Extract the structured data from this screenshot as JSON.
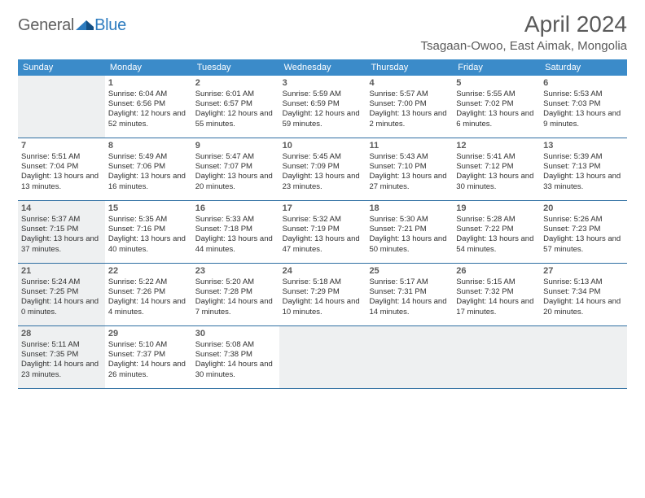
{
  "brand": {
    "word1": "General",
    "word2": "Blue"
  },
  "title": "April 2024",
  "location": "Tsagaan-Owoo, East Aimak, Mongolia",
  "colors": {
    "header_bar": "#3b8bc9",
    "week_border": "#2f6fa2",
    "shaded_bg": "#eef0f1",
    "text": "#303030",
    "title_text": "#5a5a5a",
    "brand_gray": "#606060",
    "brand_blue": "#2c7bbf"
  },
  "dow": [
    "Sunday",
    "Monday",
    "Tuesday",
    "Wednesday",
    "Thursday",
    "Friday",
    "Saturday"
  ],
  "weeks": [
    {
      "shaded": [
        0
      ],
      "days": [
        null,
        {
          "n": "1",
          "sr": "6:04 AM",
          "ss": "6:56 PM",
          "dl": "12 hours and 52 minutes."
        },
        {
          "n": "2",
          "sr": "6:01 AM",
          "ss": "6:57 PM",
          "dl": "12 hours and 55 minutes."
        },
        {
          "n": "3",
          "sr": "5:59 AM",
          "ss": "6:59 PM",
          "dl": "12 hours and 59 minutes."
        },
        {
          "n": "4",
          "sr": "5:57 AM",
          "ss": "7:00 PM",
          "dl": "13 hours and 2 minutes."
        },
        {
          "n": "5",
          "sr": "5:55 AM",
          "ss": "7:02 PM",
          "dl": "13 hours and 6 minutes."
        },
        {
          "n": "6",
          "sr": "5:53 AM",
          "ss": "7:03 PM",
          "dl": "13 hours and 9 minutes."
        }
      ]
    },
    {
      "shaded": [],
      "days": [
        {
          "n": "7",
          "sr": "5:51 AM",
          "ss": "7:04 PM",
          "dl": "13 hours and 13 minutes."
        },
        {
          "n": "8",
          "sr": "5:49 AM",
          "ss": "7:06 PM",
          "dl": "13 hours and 16 minutes."
        },
        {
          "n": "9",
          "sr": "5:47 AM",
          "ss": "7:07 PM",
          "dl": "13 hours and 20 minutes."
        },
        {
          "n": "10",
          "sr": "5:45 AM",
          "ss": "7:09 PM",
          "dl": "13 hours and 23 minutes."
        },
        {
          "n": "11",
          "sr": "5:43 AM",
          "ss": "7:10 PM",
          "dl": "13 hours and 27 minutes."
        },
        {
          "n": "12",
          "sr": "5:41 AM",
          "ss": "7:12 PM",
          "dl": "13 hours and 30 minutes."
        },
        {
          "n": "13",
          "sr": "5:39 AM",
          "ss": "7:13 PM",
          "dl": "13 hours and 33 minutes."
        }
      ]
    },
    {
      "shaded": [
        0
      ],
      "days": [
        {
          "n": "14",
          "sr": "5:37 AM",
          "ss": "7:15 PM",
          "dl": "13 hours and 37 minutes."
        },
        {
          "n": "15",
          "sr": "5:35 AM",
          "ss": "7:16 PM",
          "dl": "13 hours and 40 minutes."
        },
        {
          "n": "16",
          "sr": "5:33 AM",
          "ss": "7:18 PM",
          "dl": "13 hours and 44 minutes."
        },
        {
          "n": "17",
          "sr": "5:32 AM",
          "ss": "7:19 PM",
          "dl": "13 hours and 47 minutes."
        },
        {
          "n": "18",
          "sr": "5:30 AM",
          "ss": "7:21 PM",
          "dl": "13 hours and 50 minutes."
        },
        {
          "n": "19",
          "sr": "5:28 AM",
          "ss": "7:22 PM",
          "dl": "13 hours and 54 minutes."
        },
        {
          "n": "20",
          "sr": "5:26 AM",
          "ss": "7:23 PM",
          "dl": "13 hours and 57 minutes."
        }
      ]
    },
    {
      "shaded": [
        0
      ],
      "days": [
        {
          "n": "21",
          "sr": "5:24 AM",
          "ss": "7:25 PM",
          "dl": "14 hours and 0 minutes."
        },
        {
          "n": "22",
          "sr": "5:22 AM",
          "ss": "7:26 PM",
          "dl": "14 hours and 4 minutes."
        },
        {
          "n": "23",
          "sr": "5:20 AM",
          "ss": "7:28 PM",
          "dl": "14 hours and 7 minutes."
        },
        {
          "n": "24",
          "sr": "5:18 AM",
          "ss": "7:29 PM",
          "dl": "14 hours and 10 minutes."
        },
        {
          "n": "25",
          "sr": "5:17 AM",
          "ss": "7:31 PM",
          "dl": "14 hours and 14 minutes."
        },
        {
          "n": "26",
          "sr": "5:15 AM",
          "ss": "7:32 PM",
          "dl": "14 hours and 17 minutes."
        },
        {
          "n": "27",
          "sr": "5:13 AM",
          "ss": "7:34 PM",
          "dl": "14 hours and 20 minutes."
        }
      ]
    },
    {
      "shaded": [
        0,
        3,
        4,
        5,
        6
      ],
      "days": [
        {
          "n": "28",
          "sr": "5:11 AM",
          "ss": "7:35 PM",
          "dl": "14 hours and 23 minutes."
        },
        {
          "n": "29",
          "sr": "5:10 AM",
          "ss": "7:37 PM",
          "dl": "14 hours and 26 minutes."
        },
        {
          "n": "30",
          "sr": "5:08 AM",
          "ss": "7:38 PM",
          "dl": "14 hours and 30 minutes."
        },
        null,
        null,
        null,
        null
      ]
    }
  ],
  "labels": {
    "sunrise": "Sunrise:",
    "sunset": "Sunset:",
    "daylight": "Daylight:"
  }
}
